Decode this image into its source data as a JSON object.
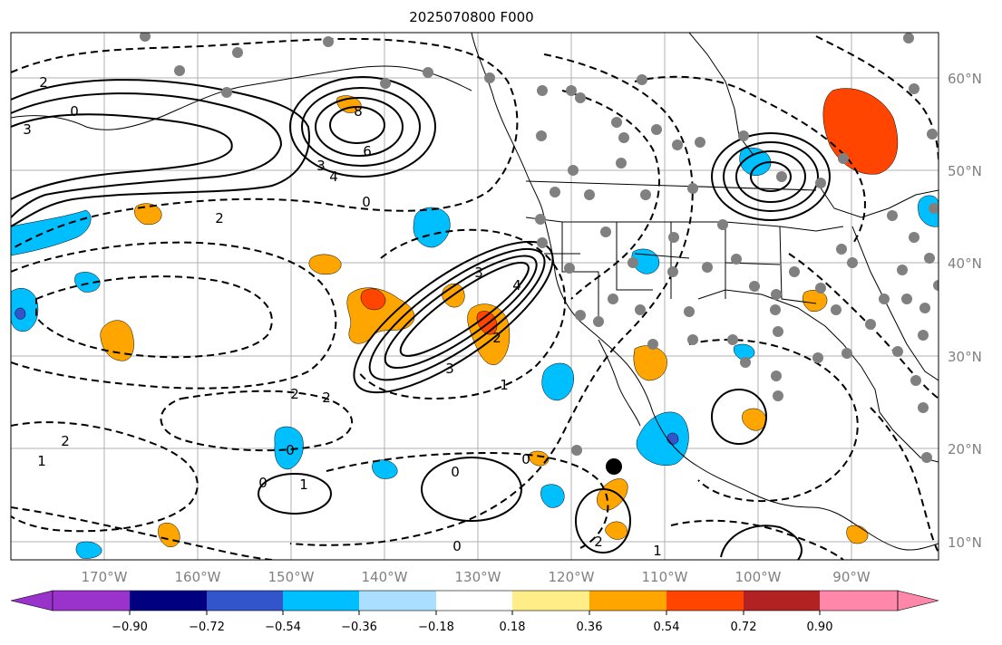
{
  "title": "2025070800 F000",
  "map": {
    "lon_labels": [
      "170°W",
      "160°W",
      "150°W",
      "140°W",
      "130°W",
      "120°W",
      "110°W",
      "100°W",
      "90°W"
    ],
    "lat_labels": [
      "60°N",
      "50°N",
      "40°N",
      "30°N",
      "20°N",
      "10°N"
    ],
    "colors": {
      "land_outline": "#000000",
      "grid": "#b0b0b0",
      "station": "#808080",
      "marker": "#000000"
    }
  },
  "colorbar": {
    "ticks": [
      "−0.90",
      "−0.72",
      "−0.54",
      "−0.36",
      "−0.18",
      "0.18",
      "0.36",
      "0.54",
      "0.72",
      "0.90"
    ],
    "colors": [
      "#9933cc",
      "#000080",
      "#3355cc",
      "#00bfff",
      "#aadfff",
      "#ffffff",
      "#ffee88",
      "#ffa500",
      "#ff4500",
      "#b22222",
      "#ff88aa"
    ]
  },
  "contour_labels": [
    "0",
    "2",
    "3",
    "6",
    "8",
    "4",
    "3",
    "2",
    "0",
    "3",
    "4",
    "2",
    "3",
    "1",
    "2",
    "2",
    "0",
    "1",
    "2",
    "1",
    "0",
    "0",
    "2",
    "1",
    "0",
    "0"
  ]
}
